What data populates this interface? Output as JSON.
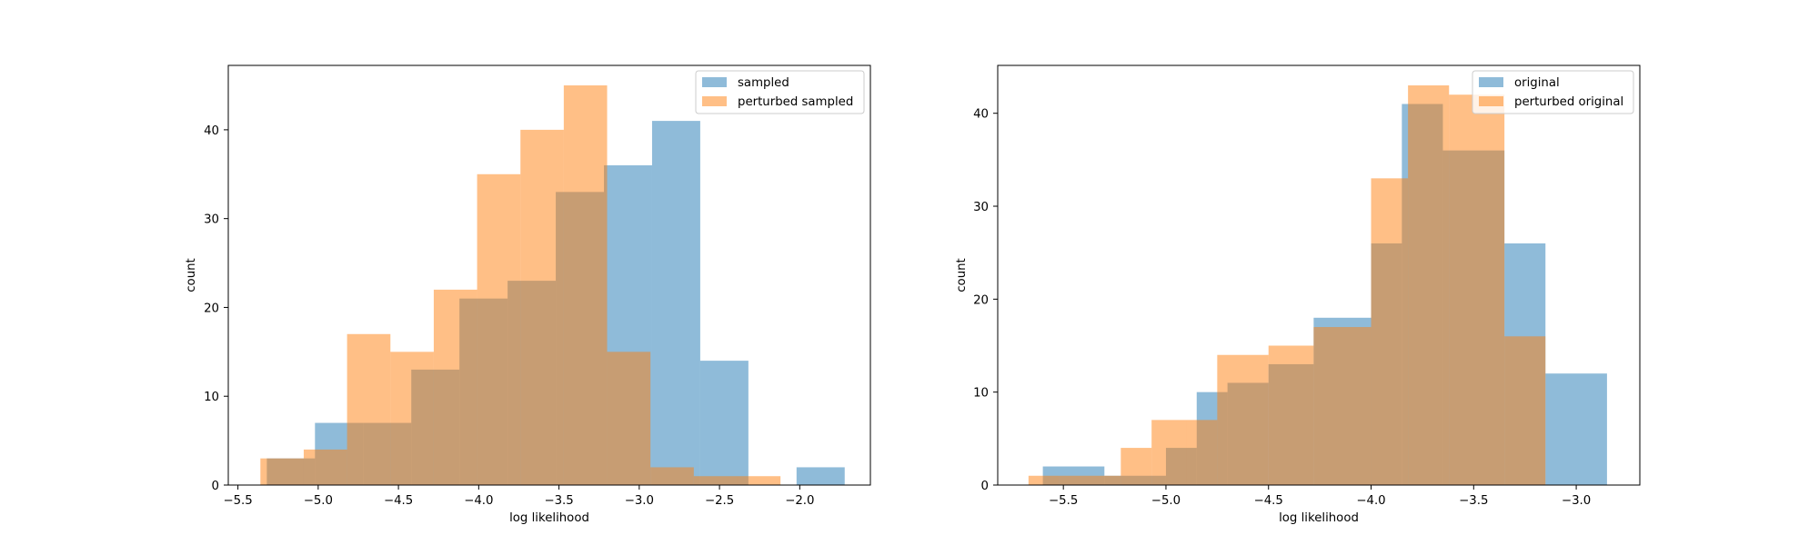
{
  "chart_data": [
    {
      "type": "histogram",
      "xlabel": "log likelihood",
      "ylabel": "count",
      "xlim": [
        -5.56,
        -1.56
      ],
      "ylim": [
        0,
        47.25
      ],
      "xticks": [
        -5.5,
        -5.0,
        -4.5,
        -4.0,
        -3.5,
        -3.0,
        -2.5,
        -2.0
      ],
      "xtick_labels": [
        "−5.5",
        "−5.0",
        "−4.5",
        "−4.0",
        "−3.5",
        "−3.0",
        "−2.5",
        "−2.0"
      ],
      "yticks": [
        0,
        10,
        20,
        30,
        40
      ],
      "ytick_labels": [
        "0",
        "10",
        "20",
        "30",
        "40"
      ],
      "grid": false,
      "legend_position": "top-right",
      "series": [
        {
          "name": "sampled",
          "color": "#1f77b4",
          "alpha": 0.5,
          "bin_edges": [
            -5.32,
            -5.02,
            -4.72,
            -4.42,
            -4.12,
            -3.82,
            -3.52,
            -3.22,
            -2.92,
            -2.62,
            -2.32,
            -2.02,
            -1.72
          ],
          "counts": [
            3,
            7,
            7,
            13,
            21,
            23,
            33,
            36,
            41,
            14,
            0,
            2
          ]
        },
        {
          "name": "perturbed sampled",
          "color": "#ff7f0e",
          "alpha": 0.5,
          "bin_edges": [
            -5.36,
            -5.09,
            -4.82,
            -4.55,
            -4.28,
            -4.01,
            -3.74,
            -3.47,
            -3.2,
            -2.93,
            -2.66,
            -2.39,
            -2.12
          ],
          "counts": [
            3,
            4,
            17,
            15,
            22,
            35,
            40,
            45,
            15,
            2,
            1,
            1
          ]
        }
      ]
    },
    {
      "type": "histogram",
      "xlabel": "log likelihood",
      "ylabel": "count",
      "xlim": [
        -5.82,
        -2.69
      ],
      "ylim": [
        0,
        45.15
      ],
      "xticks": [
        -5.5,
        -5.0,
        -4.5,
        -4.0,
        -3.5,
        -3.0
      ],
      "xtick_labels": [
        "−5.5",
        "−5.0",
        "−4.5",
        "−4.0",
        "−3.5",
        "−3.0"
      ],
      "yticks": [
        0,
        10,
        20,
        30,
        40
      ],
      "ytick_labels": [
        "0",
        "10",
        "20",
        "30",
        "40"
      ],
      "grid": false,
      "legend_position": "top-right",
      "series": [
        {
          "name": "original",
          "color": "#1f77b4",
          "alpha": 0.5,
          "bin_edges": [
            -5.6,
            -5.3,
            -5.0,
            -4.85,
            -4.7,
            -4.5,
            -4.28,
            -4.0,
            -3.85,
            -3.65,
            -3.35,
            -3.15,
            -2.85
          ],
          "counts": [
            2,
            1,
            4,
            10,
            11,
            13,
            18,
            26,
            41,
            36,
            26,
            12
          ]
        },
        {
          "name": "perturbed original",
          "color": "#ff7f0e",
          "alpha": 0.5,
          "bin_edges": [
            -5.67,
            -5.52,
            -5.22,
            -5.07,
            -4.9,
            -4.75,
            -4.5,
            -4.28,
            -4.0,
            -3.82,
            -3.62,
            -3.35,
            -3.15
          ],
          "counts": [
            1,
            1,
            4,
            7,
            7,
            14,
            15,
            17,
            33,
            43,
            42,
            16
          ]
        }
      ]
    }
  ]
}
